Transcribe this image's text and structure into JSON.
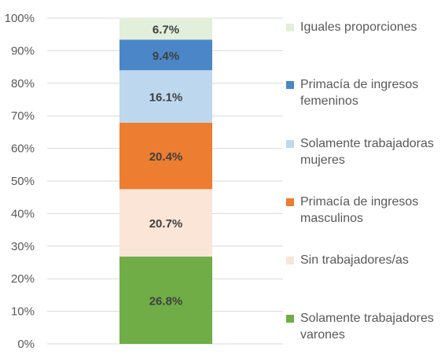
{
  "chart_data": {
    "type": "bar",
    "stacked": true,
    "y_axis_format": "percent",
    "ylim": [
      0,
      100
    ],
    "yticks": [
      "0%",
      "10%",
      "20%",
      "30%",
      "40%",
      "50%",
      "60%",
      "70%",
      "80%",
      "90%",
      "100%"
    ],
    "grid": true,
    "legend_position": "right",
    "series": [
      {
        "name": "Solamente trabajadores varones",
        "value": 26.8,
        "label": "26.8%",
        "color": "#70AD47"
      },
      {
        "name": "Sin trabajadores/as",
        "value": 20.7,
        "label": "20.7%",
        "color": "#FBE5D6"
      },
      {
        "name": "Primacía de ingresos masculinos",
        "value": 20.4,
        "label": "20.4%",
        "color": "#ED7D31"
      },
      {
        "name": "Solamente trabajadoras mujeres",
        "value": 16.1,
        "label": "16.1%",
        "color": "#BDD7EE"
      },
      {
        "name": "Primacía de ingresos femeninos",
        "value": 9.4,
        "label": "9.4%",
        "color": "#4A86C8"
      },
      {
        "name": "Iguales proporciones",
        "value": 6.7,
        "label": "6.7%",
        "color": "#E2EFDA"
      }
    ]
  }
}
